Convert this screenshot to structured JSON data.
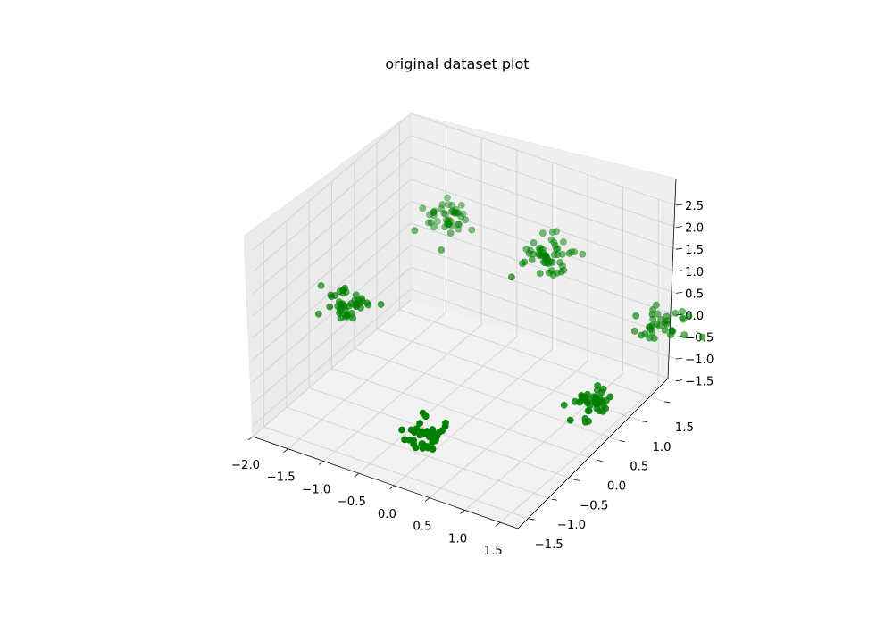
{
  "chart_data": {
    "type": "scatter",
    "title": "original dataset plot",
    "xlabel": "",
    "ylabel": "",
    "zlabel": "",
    "projection": "3d",
    "grid": true,
    "legend": "none",
    "marker_color": "#008000",
    "xlim": [
      -2.0,
      1.75
    ],
    "ylim": [
      -1.75,
      1.75
    ],
    "zlim": [
      -1.75,
      2.5
    ],
    "x_ticks": [
      -2.0,
      -1.5,
      -1.0,
      -0.5,
      0.0,
      0.5,
      1.0,
      1.5
    ],
    "x_tick_labels": [
      "−2.0",
      "−1.5",
      "−1.0",
      "−0.5",
      "0.0",
      "0.5",
      "1.0",
      "1.5"
    ],
    "y_ticks": [
      -1.5,
      -1.0,
      -0.5,
      0.0,
      0.5,
      1.0,
      1.5
    ],
    "y_tick_labels": [
      "−1.5",
      "−1.0",
      "−0.5",
      "0.0",
      "0.5",
      "1.0",
      "1.5"
    ],
    "z_ticks": [
      -1.5,
      -1.0,
      -0.5,
      0.0,
      0.5,
      1.0,
      1.5,
      2.0,
      2.5
    ],
    "z_tick_labels": [
      "−1.5",
      "−1.0",
      "−0.5",
      "0.0",
      "0.5",
      "1.0",
      "1.5",
      "2.0",
      "2.5"
    ],
    "clusters": [
      {
        "center": [
          0.0,
          -1.0,
          -1.3
        ],
        "spread": 0.13,
        "count": 45
      },
      {
        "center": [
          -1.8,
          0.0,
          -0.2
        ],
        "spread": 0.13,
        "count": 45
      },
      {
        "center": [
          -1.2,
          1.3,
          1.0
        ],
        "spread": 0.15,
        "count": 45
      },
      {
        "center": [
          0.2,
          1.4,
          0.8
        ],
        "spread": 0.13,
        "count": 55
      },
      {
        "center": [
          1.3,
          0.6,
          -1.2
        ],
        "spread": 0.13,
        "count": 45
      },
      {
        "center": [
          1.6,
          1.6,
          -0.2
        ],
        "spread": 0.15,
        "count": 35
      }
    ]
  }
}
